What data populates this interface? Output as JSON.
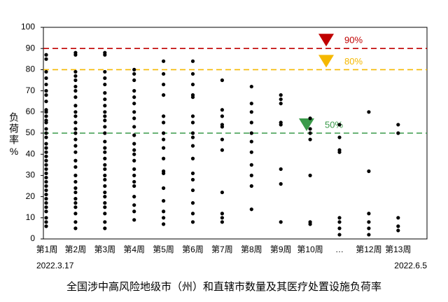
{
  "chart_data": {
    "type": "strip",
    "y_label": "负荷率%",
    "categories": [
      "第1周",
      "第2周",
      "第3周",
      "第4周",
      "第5周",
      "第6周",
      "第7周",
      "第8周",
      "第9周",
      "第10周",
      "…",
      "第12周",
      "第13周"
    ],
    "values": [
      [
        87,
        85,
        79,
        76,
        73,
        70,
        68,
        65,
        61,
        60,
        58,
        56,
        55,
        52,
        50,
        48,
        45,
        43,
        41,
        39,
        37,
        35,
        33,
        31,
        29,
        27,
        25,
        23,
        21,
        19,
        17,
        15,
        13,
        10,
        8,
        6
      ],
      [
        88,
        87,
        79,
        77,
        75,
        72,
        70,
        67,
        63,
        60,
        58,
        55,
        52,
        50,
        47,
        44,
        41,
        37,
        34,
        30,
        27,
        24,
        22,
        19,
        17,
        15,
        12,
        8,
        5
      ],
      [
        88,
        87,
        79,
        76,
        73,
        69,
        66,
        63,
        60,
        58,
        56,
        53,
        50,
        46,
        43,
        41,
        38,
        35,
        33,
        30,
        28,
        25,
        22,
        20,
        17,
        15,
        12,
        8,
        5
      ],
      [
        80,
        78,
        75,
        70,
        67,
        64,
        60,
        57,
        53,
        49,
        45,
        42,
        40,
        37,
        33,
        30,
        27,
        25,
        20,
        16,
        13,
        9
      ],
      [
        84,
        78,
        73,
        68,
        58,
        55,
        50,
        47,
        43,
        38,
        32,
        31,
        24,
        18,
        13,
        10,
        7
      ],
      [
        84,
        78,
        73,
        68,
        67,
        58,
        55,
        50,
        48,
        44,
        38,
        31,
        28,
        23,
        17,
        12,
        8
      ],
      [
        75,
        61,
        58,
        54,
        53,
        47,
        42,
        22,
        12,
        10,
        8
      ],
      [
        72,
        64,
        60,
        55,
        50,
        46,
        41,
        35,
        30,
        25,
        14
      ],
      [
        68,
        66,
        64,
        55,
        54,
        33,
        26,
        8
      ],
      [
        57,
        52,
        50,
        47,
        30,
        8,
        7
      ],
      [
        54,
        48,
        42,
        41,
        10,
        8,
        5,
        2
      ],
      [
        60,
        32,
        12,
        8,
        5,
        2
      ],
      [
        54,
        50,
        10,
        6,
        4
      ]
    ],
    "color": "#000000",
    "ylim": [
      0,
      100
    ],
    "yticks": [
      0,
      10,
      20,
      30,
      40,
      50,
      60,
      70,
      80,
      90,
      100
    ],
    "reference_lines": [
      {
        "value": 90,
        "label": "90%",
        "color": "#c00000"
      },
      {
        "value": 80,
        "label": "80%",
        "color": "#f5b800"
      },
      {
        "value": 50,
        "label": "50%",
        "color": "#3a9a4a"
      }
    ],
    "start_date": "2022.3.17",
    "end_date": "2022.6.5",
    "caption": "全国涉中高风险地级市（州）和直辖市数量及其医疗处置设施负荷率"
  }
}
